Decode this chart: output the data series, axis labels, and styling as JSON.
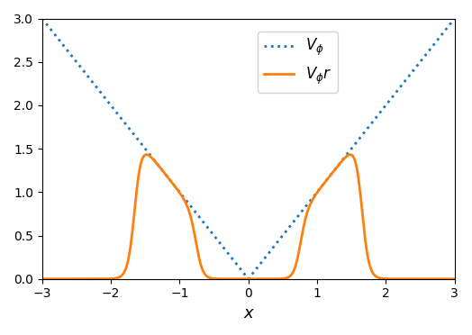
{
  "xlim": [
    -3,
    3
  ],
  "ylim": [
    0.0,
    3.0
  ],
  "xlabel": "x",
  "ylabel": "",
  "title": "",
  "legend_labels": [
    "$V_{\\phi}$",
    "$V_{\\phi}r$"
  ],
  "line1_color": "#1f77b4",
  "line1_style": "dotted",
  "line1_linewidth": 2.0,
  "line2_color": "#ff7f0e",
  "line2_style": "solid",
  "line2_linewidth": 2.0,
  "xticks": [
    -3,
    -2,
    -1,
    0,
    1,
    2,
    3
  ],
  "yticks": [
    0.0,
    0.5,
    1.0,
    1.5,
    2.0,
    2.5,
    3.0
  ],
  "figsize": [
    5.24,
    3.72
  ],
  "dpi": 100,
  "sigmoid_steepness": 20.0,
  "bump_inner": 0.75,
  "bump_outer": 1.65
}
